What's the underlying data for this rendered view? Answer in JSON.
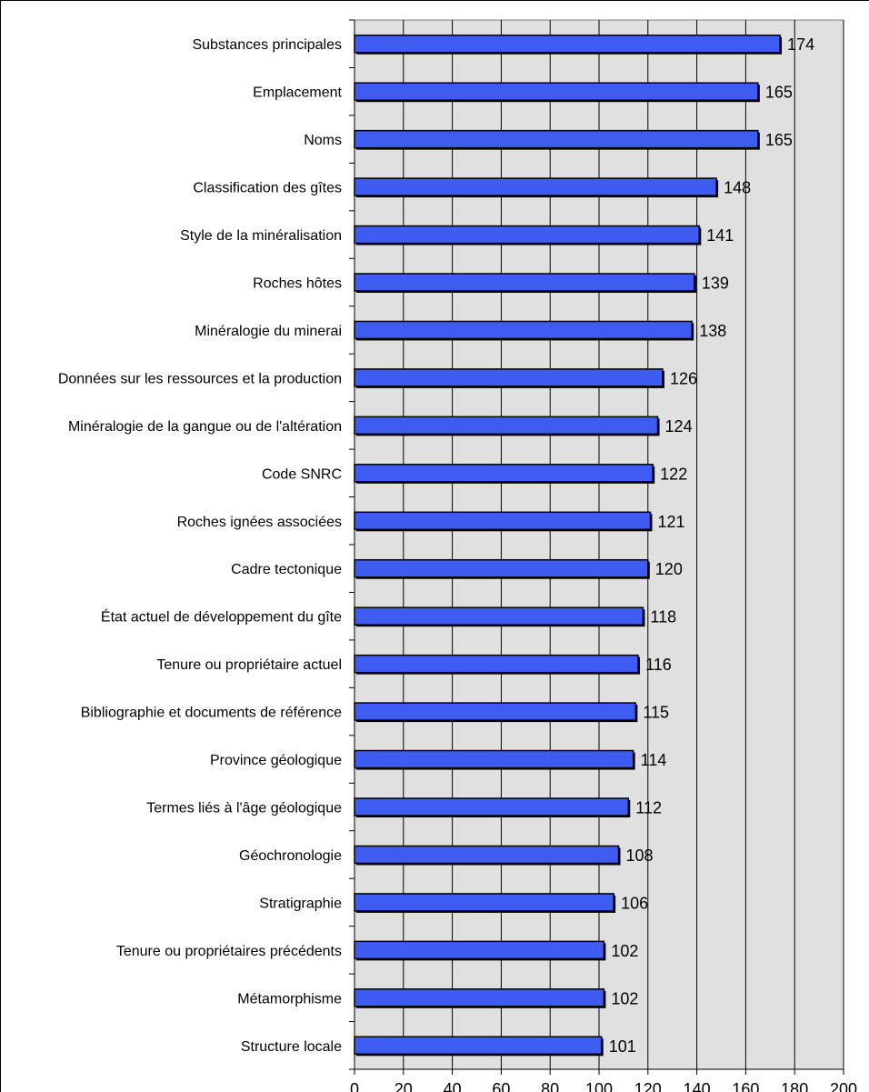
{
  "chart_data": {
    "type": "bar",
    "orientation": "horizontal",
    "categories": [
      "Substances principales",
      "Emplacement",
      "Noms",
      "Classification des gîtes",
      "Style de la minéralisation",
      "Roches hôtes",
      "Minéralogie du minerai",
      "Données sur les ressources et la production",
      "Minéralogie de la gangue ou de l'altération",
      "Code SNRC",
      "Roches ignées associées",
      "Cadre tectonique",
      "État actuel de développement du gîte",
      "Tenure ou propriétaire actuel",
      "Bibliographie et documents de référence",
      "Province géologique",
      "Termes liés à l'âge géologique",
      "Géochronologie",
      "Stratigraphie",
      "Tenure ou propriétaires précédents",
      "Métamorphisme",
      "Structure locale"
    ],
    "values": [
      174,
      165,
      165,
      148,
      141,
      139,
      138,
      126,
      124,
      122,
      121,
      120,
      118,
      116,
      115,
      114,
      112,
      108,
      106,
      102,
      102,
      101
    ],
    "xlim": [
      0,
      200
    ],
    "xticks": [
      "0",
      "20",
      "40",
      "60",
      "80",
      "100",
      "120",
      "140",
      "160",
      "180",
      "200"
    ],
    "grid": "vertical",
    "colors": {
      "bar_fill": "#3f5cf2",
      "bar_edge": "#000000",
      "plot_background": "#e0e0e0",
      "gridline": "#000000"
    }
  }
}
